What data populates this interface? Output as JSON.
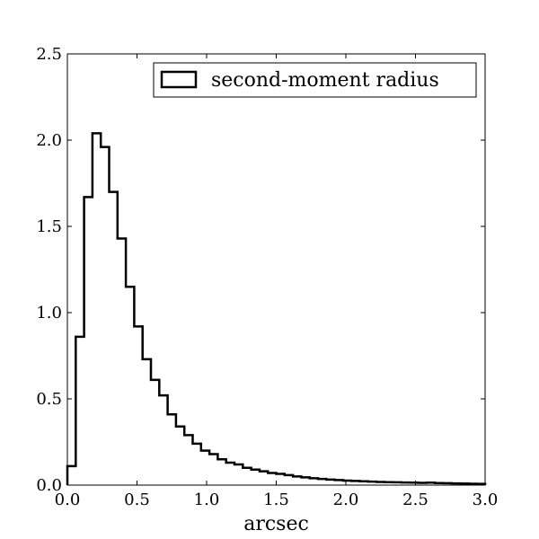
{
  "chart_data": {
    "type": "histogram-step",
    "title": "",
    "xlabel": "arcsec",
    "ylabel": "",
    "xlim": [
      0.0,
      3.0
    ],
    "ylim": [
      0.0,
      2.5
    ],
    "xticks": [
      0.0,
      0.5,
      1.0,
      1.5,
      2.0,
      2.5,
      3.0
    ],
    "yticks": [
      0.0,
      0.5,
      1.0,
      1.5,
      2.0,
      2.5
    ],
    "xtick_labels": [
      "0.0",
      "0.5",
      "1.0",
      "1.5",
      "2.0",
      "2.5",
      "3.0"
    ],
    "ytick_labels": [
      "0.0",
      "0.5",
      "1.0",
      "1.5",
      "2.0",
      "2.5"
    ],
    "legend": {
      "position": "upper-right",
      "entries": [
        "second-moment radius"
      ]
    },
    "series": [
      {
        "name": "second-moment radius",
        "bin_edges": [
          0.0,
          0.06,
          0.12,
          0.18,
          0.24,
          0.3,
          0.36,
          0.42,
          0.48,
          0.54,
          0.6,
          0.66,
          0.72,
          0.78,
          0.84,
          0.9,
          0.96,
          1.02,
          1.08,
          1.14,
          1.2,
          1.26,
          1.32,
          1.38,
          1.44,
          1.5,
          1.56,
          1.62,
          1.68,
          1.74,
          1.8,
          1.86,
          1.92,
          1.98,
          2.04,
          2.1,
          2.16,
          2.22,
          2.28,
          2.34,
          2.4,
          2.46,
          2.52,
          2.58,
          2.64,
          2.7,
          2.76,
          2.82,
          2.88,
          2.94,
          3.0
        ],
        "values": [
          0.11,
          0.86,
          1.67,
          2.04,
          1.96,
          1.7,
          1.43,
          1.15,
          0.92,
          0.73,
          0.61,
          0.52,
          0.41,
          0.34,
          0.29,
          0.24,
          0.2,
          0.18,
          0.15,
          0.13,
          0.12,
          0.1,
          0.09,
          0.08,
          0.07,
          0.065,
          0.058,
          0.05,
          0.045,
          0.04,
          0.036,
          0.032,
          0.029,
          0.026,
          0.024,
          0.022,
          0.02,
          0.018,
          0.017,
          0.016,
          0.015,
          0.014,
          0.013,
          0.014,
          0.012,
          0.011,
          0.01,
          0.009,
          0.008,
          0.007
        ]
      }
    ]
  }
}
